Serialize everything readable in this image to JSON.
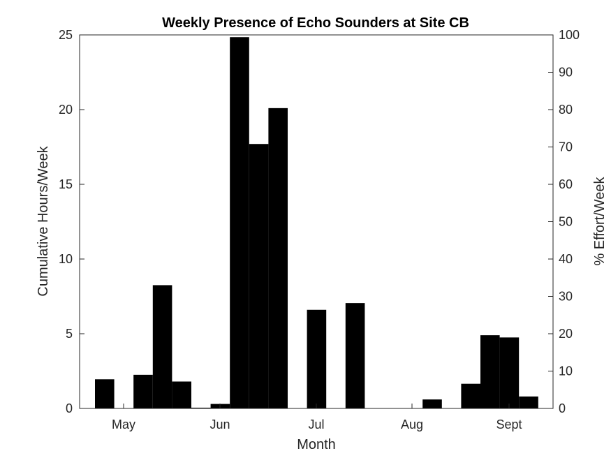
{
  "chart_data": {
    "type": "bar",
    "title": "Weekly Presence of Echo Sounders at Site CB",
    "xlabel": "Month",
    "ylabel": "Cumulative Hours/Week",
    "y2label": "% Effort/Week",
    "ylim": [
      0,
      25
    ],
    "y2lim": [
      0,
      100
    ],
    "yticks": [
      0,
      5,
      10,
      15,
      20,
      25
    ],
    "y2ticks": [
      0,
      10,
      20,
      30,
      40,
      50,
      60,
      70,
      80,
      90,
      100
    ],
    "xtick_labels": [
      "May",
      "Jun",
      "Jul",
      "Aug",
      "Sept"
    ],
    "grid": false,
    "bar_color": "#000000",
    "series": [
      {
        "values": [
          1.95,
          0,
          2.25,
          8.25,
          1.8,
          0.05,
          0.3,
          24.85,
          17.7,
          20.1,
          0,
          6.6,
          0,
          7.05,
          0,
          0,
          0,
          0.6,
          0,
          1.65,
          4.9,
          4.75,
          0.8
        ]
      }
    ]
  }
}
